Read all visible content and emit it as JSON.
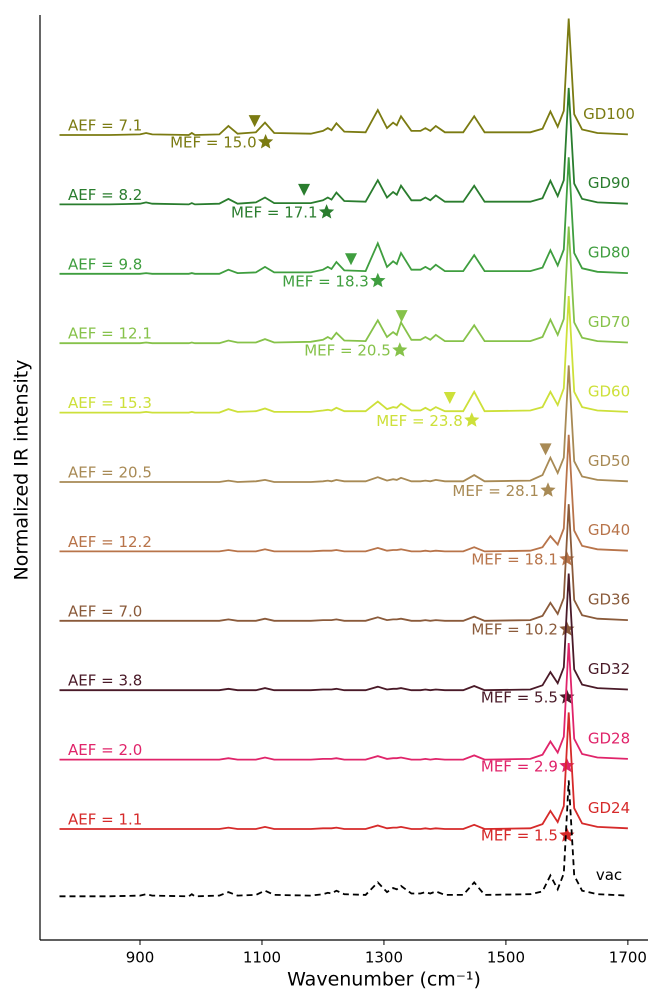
{
  "chart_data": {
    "type": "line",
    "xlabel": "Wavenumber (cm⁻¹)",
    "ylabel": "Normalized IR intensity",
    "xlim": [
      736,
      1733
    ],
    "xticks": [
      900,
      1100,
      1300,
      1500,
      1700
    ],
    "ylim": [
      0,
      13.33
    ],
    "x": [
      768,
      850,
      900,
      910,
      920,
      980,
      985,
      990,
      1030,
      1045,
      1060,
      1090,
      1105,
      1120,
      1180,
      1200,
      1208,
      1214,
      1222,
      1235,
      1270,
      1290,
      1305,
      1315,
      1321,
      1328,
      1345,
      1360,
      1368,
      1376,
      1385,
      1400,
      1430,
      1448,
      1465,
      1540,
      1560,
      1573,
      1585,
      1595,
      1603,
      1612,
      1625,
      1650,
      1700
    ],
    "series": [
      {
        "name": "GD100",
        "color": "#7b7b12",
        "aef": "AEF = 7.1",
        "mef": "MEF = 15.0",
        "star": {
          "x": 1106,
          "y": 11.5
        },
        "triangle": {
          "x": 1088,
          "y": 11.8
        },
        "values": [
          11.6,
          11.6,
          11.61,
          11.63,
          11.61,
          11.6,
          11.63,
          11.6,
          11.61,
          11.73,
          11.62,
          11.64,
          11.78,
          11.63,
          11.62,
          11.66,
          11.7,
          11.67,
          11.77,
          11.65,
          11.64,
          11.96,
          11.7,
          11.78,
          11.74,
          11.87,
          11.66,
          11.66,
          11.7,
          11.66,
          11.73,
          11.64,
          11.64,
          11.87,
          11.64,
          11.64,
          11.69,
          11.94,
          11.72,
          11.95,
          13.28,
          11.9,
          11.68,
          11.63,
          11.61
        ]
      },
      {
        "name": "GD90",
        "color": "#2a7d2e",
        "aef": "AEF = 8.2",
        "mef": "MEF = 17.1",
        "star": {
          "x": 1206,
          "y": 10.49
        },
        "triangle": {
          "x": 1169,
          "y": 10.81
        },
        "values": [
          10.6,
          10.6,
          10.61,
          10.63,
          10.61,
          10.6,
          10.62,
          10.6,
          10.61,
          10.68,
          10.61,
          10.63,
          10.7,
          10.62,
          10.62,
          10.66,
          10.7,
          10.67,
          10.77,
          10.65,
          10.64,
          10.95,
          10.7,
          10.78,
          10.74,
          10.87,
          10.66,
          10.66,
          10.7,
          10.66,
          10.73,
          10.64,
          10.64,
          10.87,
          10.64,
          10.64,
          10.69,
          10.94,
          10.72,
          10.95,
          12.28,
          10.9,
          10.68,
          10.63,
          10.61
        ]
      },
      {
        "name": "GD80",
        "color": "#3f9e3f",
        "aef": "AEF = 9.8",
        "mef": "MEF = 18.3",
        "star": {
          "x": 1290,
          "y": 9.5
        },
        "triangle": {
          "x": 1246,
          "y": 9.81
        },
        "values": [
          9.6,
          9.6,
          9.6,
          9.61,
          9.6,
          9.6,
          9.61,
          9.6,
          9.6,
          9.66,
          9.61,
          9.62,
          9.7,
          9.62,
          9.62,
          9.66,
          9.7,
          9.67,
          9.77,
          9.65,
          9.64,
          10.04,
          9.7,
          9.78,
          9.74,
          9.9,
          9.66,
          9.66,
          9.7,
          9.66,
          9.73,
          9.64,
          9.64,
          9.87,
          9.64,
          9.64,
          9.69,
          9.94,
          9.72,
          9.95,
          11.28,
          9.9,
          9.68,
          9.63,
          9.61
        ]
      },
      {
        "name": "GD70",
        "color": "#86c24a",
        "aef": "AEF = 12.1",
        "mef": "MEF = 20.5",
        "star": {
          "x": 1326,
          "y": 8.5
        },
        "triangle": {
          "x": 1329,
          "y": 8.99
        },
        "values": [
          8.6,
          8.6,
          8.6,
          8.61,
          8.6,
          8.6,
          8.61,
          8.6,
          8.6,
          8.64,
          8.61,
          8.61,
          8.66,
          8.61,
          8.62,
          8.65,
          8.69,
          8.66,
          8.75,
          8.64,
          8.63,
          8.93,
          8.69,
          8.76,
          8.72,
          8.9,
          8.65,
          8.65,
          8.69,
          8.65,
          8.72,
          8.63,
          8.63,
          8.86,
          8.63,
          8.63,
          8.69,
          8.94,
          8.72,
          8.95,
          10.28,
          8.9,
          8.68,
          8.63,
          8.61
        ]
      },
      {
        "name": "GD60",
        "color": "#cde03a",
        "aef": "AEF = 15.3",
        "mef": "MEF = 23.8",
        "star": {
          "x": 1444,
          "y": 7.49
        },
        "triangle": {
          "x": 1408,
          "y": 7.81
        },
        "values": [
          7.6,
          7.6,
          7.6,
          7.61,
          7.6,
          7.6,
          7.61,
          7.6,
          7.6,
          7.65,
          7.61,
          7.62,
          7.66,
          7.61,
          7.61,
          7.63,
          7.64,
          7.63,
          7.67,
          7.62,
          7.62,
          7.76,
          7.65,
          7.68,
          7.67,
          7.73,
          7.63,
          7.63,
          7.67,
          7.63,
          7.68,
          7.62,
          7.62,
          7.9,
          7.62,
          7.63,
          7.68,
          7.9,
          7.71,
          7.95,
          9.28,
          7.9,
          7.68,
          7.63,
          7.61
        ]
      },
      {
        "name": "GD50",
        "color": "#a88a55",
        "aef": "AEF = 20.5",
        "mef": "MEF = 28.1",
        "star": {
          "x": 1569,
          "y": 6.48
        },
        "triangle": {
          "x": 1565,
          "y": 7.07
        },
        "values": [
          6.6,
          6.6,
          6.6,
          6.6,
          6.6,
          6.6,
          6.6,
          6.6,
          6.6,
          6.62,
          6.6,
          6.61,
          6.63,
          6.6,
          6.6,
          6.61,
          6.62,
          6.61,
          6.63,
          6.61,
          6.61,
          6.67,
          6.62,
          6.64,
          6.63,
          6.66,
          6.61,
          6.61,
          6.62,
          6.61,
          6.63,
          6.61,
          6.61,
          6.7,
          6.61,
          6.62,
          6.7,
          6.95,
          6.73,
          6.95,
          8.28,
          6.9,
          6.68,
          6.63,
          6.61
        ]
      },
      {
        "name": "GD40",
        "color": "#b8744a",
        "aef": "AEF = 12.2",
        "mef": "MEF = 18.1",
        "star": {
          "x": 1600,
          "y": 5.49
        },
        "values": [
          5.6,
          5.6,
          5.6,
          5.6,
          5.6,
          5.6,
          5.6,
          5.6,
          5.6,
          5.62,
          5.6,
          5.6,
          5.63,
          5.6,
          5.6,
          5.61,
          5.61,
          5.61,
          5.62,
          5.6,
          5.6,
          5.65,
          5.61,
          5.62,
          5.62,
          5.63,
          5.6,
          5.6,
          5.61,
          5.6,
          5.61,
          5.6,
          5.6,
          5.66,
          5.6,
          5.61,
          5.66,
          5.82,
          5.7,
          5.93,
          7.28,
          5.9,
          5.68,
          5.63,
          5.61
        ]
      },
      {
        "name": "GD36",
        "color": "#8a5a3a",
        "aef": "AEF = 7.0",
        "mef": "MEF = 10.2",
        "star": {
          "x": 1600,
          "y": 4.48
        },
        "values": [
          4.6,
          4.6,
          4.6,
          4.6,
          4.6,
          4.6,
          4.6,
          4.6,
          4.6,
          4.62,
          4.6,
          4.6,
          4.63,
          4.6,
          4.6,
          4.61,
          4.61,
          4.61,
          4.62,
          4.6,
          4.6,
          4.65,
          4.61,
          4.62,
          4.62,
          4.63,
          4.6,
          4.6,
          4.61,
          4.6,
          4.61,
          4.6,
          4.6,
          4.66,
          4.6,
          4.61,
          4.67,
          4.86,
          4.7,
          4.93,
          6.28,
          4.9,
          4.68,
          4.63,
          4.61
        ]
      },
      {
        "name": "GD32",
        "color": "#4a1a28",
        "aef": "AEF = 3.8",
        "mef": "MEF = 5.5",
        "star": {
          "x": 1600,
          "y": 3.5
        },
        "values": [
          3.6,
          3.6,
          3.6,
          3.6,
          3.6,
          3.6,
          3.6,
          3.6,
          3.6,
          3.62,
          3.6,
          3.6,
          3.63,
          3.6,
          3.6,
          3.61,
          3.61,
          3.61,
          3.62,
          3.6,
          3.6,
          3.65,
          3.61,
          3.62,
          3.62,
          3.63,
          3.6,
          3.6,
          3.61,
          3.6,
          3.61,
          3.6,
          3.6,
          3.66,
          3.6,
          3.61,
          3.67,
          3.86,
          3.7,
          3.93,
          5.28,
          3.9,
          3.68,
          3.63,
          3.61
        ]
      },
      {
        "name": "GD28",
        "color": "#e0246a",
        "aef": "AEF = 2.0",
        "mef": "MEF = 2.9",
        "star": {
          "x": 1600,
          "y": 2.51
        },
        "values": [
          2.6,
          2.6,
          2.6,
          2.6,
          2.6,
          2.6,
          2.6,
          2.6,
          2.6,
          2.62,
          2.6,
          2.6,
          2.63,
          2.6,
          2.6,
          2.61,
          2.61,
          2.61,
          2.62,
          2.6,
          2.6,
          2.65,
          2.61,
          2.62,
          2.62,
          2.63,
          2.6,
          2.6,
          2.61,
          2.6,
          2.61,
          2.6,
          2.6,
          2.66,
          2.6,
          2.61,
          2.67,
          2.86,
          2.7,
          2.93,
          4.28,
          2.9,
          2.68,
          2.63,
          2.61
        ]
      },
      {
        "name": "GD24",
        "color": "#d62a2a",
        "aef": "AEF = 1.1",
        "mef": "MEF = 1.5",
        "star": {
          "x": 1600,
          "y": 1.51
        },
        "values": [
          1.6,
          1.6,
          1.6,
          1.6,
          1.6,
          1.6,
          1.6,
          1.6,
          1.6,
          1.62,
          1.6,
          1.6,
          1.63,
          1.6,
          1.6,
          1.61,
          1.61,
          1.61,
          1.62,
          1.6,
          1.6,
          1.65,
          1.61,
          1.62,
          1.62,
          1.63,
          1.6,
          1.6,
          1.61,
          1.6,
          1.61,
          1.6,
          1.6,
          1.66,
          1.6,
          1.61,
          1.67,
          1.86,
          1.7,
          1.93,
          3.28,
          1.9,
          1.68,
          1.63,
          1.61
        ]
      },
      {
        "name": "vac",
        "color": "#000000",
        "dashed": true,
        "values": [
          0.63,
          0.63,
          0.64,
          0.66,
          0.64,
          0.63,
          0.66,
          0.63,
          0.64,
          0.69,
          0.64,
          0.65,
          0.71,
          0.65,
          0.64,
          0.66,
          0.68,
          0.67,
          0.71,
          0.66,
          0.65,
          0.83,
          0.69,
          0.75,
          0.73,
          0.78,
          0.67,
          0.67,
          0.69,
          0.67,
          0.7,
          0.65,
          0.65,
          0.83,
          0.65,
          0.66,
          0.7,
          0.93,
          0.73,
          0.96,
          2.3,
          0.93,
          0.71,
          0.66,
          0.64
        ]
      }
    ]
  }
}
